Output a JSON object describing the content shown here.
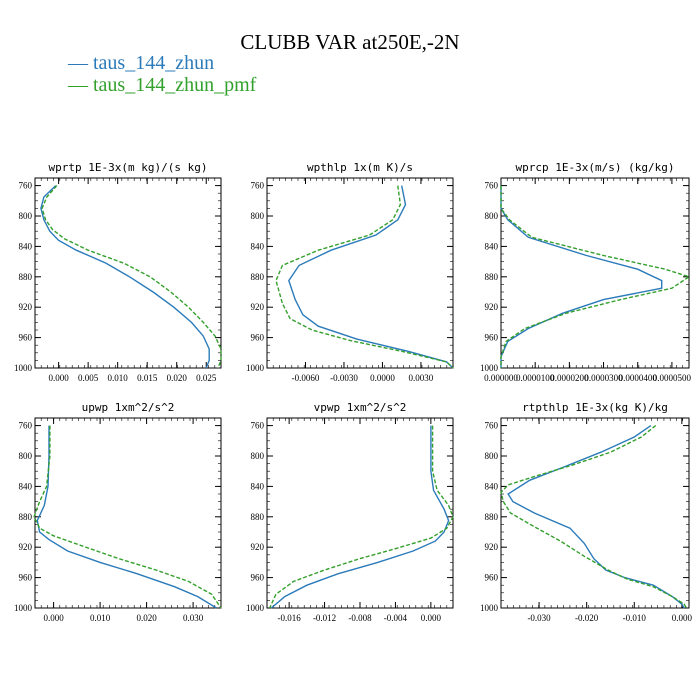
{
  "figure": {
    "title": "CLUBB VAR at250E,-2N",
    "legend": [
      {
        "label": "taus_144_zhun",
        "color": "#2b7bba"
      },
      {
        "label": "taus_144_zhun_pmf",
        "color": "#33a02c"
      }
    ]
  },
  "chart_data": [
    {
      "type": "line",
      "title": "wprtp   1E-3x(m kg)/(s kg)",
      "xlim": [
        -0.004,
        0.0275
      ],
      "ylim": [
        1000,
        750
      ],
      "y_reversed": true,
      "xticks": [
        0.0,
        0.005,
        0.01,
        0.015,
        0.02,
        0.025
      ],
      "xtick_labels": [
        "0.000",
        "0.005",
        "0.010",
        "0.015",
        "0.020",
        "0.025"
      ],
      "yticks": [
        760,
        800,
        840,
        880,
        920,
        960,
        1000
      ],
      "series": [
        {
          "name": "taus_144_zhun",
          "color": "#2b7bba",
          "dashed": false,
          "points": [
            [
              -0.0005,
              760
            ],
            [
              -0.0025,
              775
            ],
            [
              -0.003,
              790
            ],
            [
              -0.0025,
              805
            ],
            [
              -0.0015,
              820
            ],
            [
              0.0,
              832
            ],
            [
              0.003,
              845
            ],
            [
              0.008,
              862
            ],
            [
              0.012,
              880
            ],
            [
              0.016,
              900
            ],
            [
              0.0195,
              920
            ],
            [
              0.0225,
              940
            ],
            [
              0.0245,
              958
            ],
            [
              0.0255,
              975
            ],
            [
              0.0255,
              990
            ],
            [
              0.025,
              1000
            ]
          ]
        },
        {
          "name": "taus_144_zhun_pmf",
          "color": "#33a02c",
          "dashed": true,
          "points": [
            [
              -0.0003,
              760
            ],
            [
              -0.002,
              775
            ],
            [
              -0.0028,
              790
            ],
            [
              -0.0022,
              805
            ],
            [
              -0.001,
              818
            ],
            [
              0.001,
              830
            ],
            [
              0.005,
              845
            ],
            [
              0.011,
              862
            ],
            [
              0.0155,
              880
            ],
            [
              0.019,
              900
            ],
            [
              0.022,
              920
            ],
            [
              0.0245,
              940
            ],
            [
              0.0265,
              958
            ],
            [
              0.0275,
              975
            ],
            [
              0.0275,
              990
            ],
            [
              0.027,
              1000
            ]
          ]
        }
      ]
    },
    {
      "type": "line",
      "title": "wpthlp   1x(m K)/s",
      "xlim": [
        -0.009,
        0.0055
      ],
      "ylim": [
        1000,
        750
      ],
      "y_reversed": true,
      "xticks": [
        -0.006,
        -0.003,
        0.0,
        0.003
      ],
      "xtick_labels": [
        "-0.0060",
        "-0.0030",
        "0.0000",
        "0.0030"
      ],
      "yticks": [
        760,
        800,
        840,
        880,
        920,
        960,
        1000
      ],
      "series": [
        {
          "name": "taus_144_zhun",
          "color": "#2b7bba",
          "dashed": false,
          "points": [
            [
              0.0015,
              760
            ],
            [
              0.0018,
              785
            ],
            [
              0.0012,
              805
            ],
            [
              -0.0005,
              825
            ],
            [
              -0.004,
              845
            ],
            [
              -0.0065,
              865
            ],
            [
              -0.0073,
              885
            ],
            [
              -0.0068,
              910
            ],
            [
              -0.0062,
              930
            ],
            [
              -0.005,
              945
            ],
            [
              -0.002,
              962
            ],
            [
              0.002,
              978
            ],
            [
              0.005,
              992
            ],
            [
              0.0055,
              1000
            ]
          ]
        },
        {
          "name": "taus_144_zhun_pmf",
          "color": "#33a02c",
          "dashed": true,
          "points": [
            [
              0.0012,
              760
            ],
            [
              0.0014,
              785
            ],
            [
              0.0008,
              805
            ],
            [
              -0.001,
              825
            ],
            [
              -0.005,
              845
            ],
            [
              -0.0078,
              865
            ],
            [
              -0.0083,
              885
            ],
            [
              -0.0078,
              915
            ],
            [
              -0.0072,
              935
            ],
            [
              -0.0055,
              950
            ],
            [
              -0.0025,
              964
            ],
            [
              0.0015,
              978
            ],
            [
              0.005,
              992
            ],
            [
              0.0055,
              1000
            ]
          ]
        }
      ]
    },
    {
      "type": "line",
      "title": "wprcp   1E-3x(m/s) (kg/kg)",
      "xlim": [
        0.0,
        5.5e-05
      ],
      "ylim": [
        1000,
        750
      ],
      "y_reversed": true,
      "xticks": [
        0.0,
        1e-05,
        2e-05,
        3e-05,
        4e-05,
        5e-05
      ],
      "xtick_labels": [
        "0.000000",
        "0.0000100",
        "0.0000200",
        "0.0000300",
        "0.0000400",
        "0.0000500"
      ],
      "yticks": [
        760,
        800,
        840,
        880,
        920,
        960,
        1000
      ],
      "series": [
        {
          "name": "taus_144_zhun",
          "color": "#2b7bba",
          "dashed": false,
          "points": [
            [
              0.0,
              760
            ],
            [
              0.0,
              790
            ],
            [
              2e-06,
              805
            ],
            [
              8e-06,
              828
            ],
            [
              2.5e-05,
              852
            ],
            [
              4e-05,
              870
            ],
            [
              4.7e-05,
              885
            ],
            [
              4.7e-05,
              895
            ],
            [
              3e-05,
              910
            ],
            [
              1.8e-05,
              928
            ],
            [
              8e-06,
              948
            ],
            [
              2e-06,
              965
            ],
            [
              0.0,
              985
            ],
            [
              0.0,
              1000
            ]
          ]
        },
        {
          "name": "taus_144_zhun_pmf",
          "color": "#33a02c",
          "dashed": true,
          "points": [
            [
              0.0,
              760
            ],
            [
              0.0,
              790
            ],
            [
              2.5e-06,
              805
            ],
            [
              9e-06,
              828
            ],
            [
              3e-05,
              852
            ],
            [
              4.8e-05,
              870
            ],
            [
              5.5e-05,
              880
            ],
            [
              5e-05,
              895
            ],
            [
              3.5e-05,
              910
            ],
            [
              1.9e-05,
              928
            ],
            [
              7e-06,
              948
            ],
            [
              1.5e-06,
              965
            ],
            [
              0.0,
              985
            ],
            [
              0.0,
              1000
            ]
          ]
        }
      ]
    },
    {
      "type": "line",
      "title": "upwp   1xm^2/s^2",
      "xlim": [
        -0.004,
        0.036
      ],
      "ylim": [
        1000,
        750
      ],
      "y_reversed": true,
      "xticks": [
        0.0,
        0.01,
        0.02,
        0.03
      ],
      "xtick_labels": [
        "0.000",
        "0.010",
        "0.020",
        "0.030"
      ],
      "yticks": [
        760,
        800,
        840,
        880,
        920,
        960,
        1000
      ],
      "series": [
        {
          "name": "taus_144_zhun",
          "color": "#2b7bba",
          "dashed": false,
          "points": [
            [
              -0.001,
              760
            ],
            [
              -0.001,
              800
            ],
            [
              -0.0012,
              840
            ],
            [
              -0.002,
              865
            ],
            [
              -0.0035,
              885
            ],
            [
              -0.003,
              900
            ],
            [
              -0.001,
              910
            ],
            [
              0.003,
              925
            ],
            [
              0.01,
              940
            ],
            [
              0.018,
              955
            ],
            [
              0.026,
              972
            ],
            [
              0.031,
              985
            ],
            [
              0.035,
              1000
            ]
          ]
        },
        {
          "name": "taus_144_zhun_pmf",
          "color": "#33a02c",
          "dashed": true,
          "points": [
            [
              -0.0008,
              760
            ],
            [
              -0.0008,
              800
            ],
            [
              -0.0015,
              840
            ],
            [
              -0.003,
              860
            ],
            [
              -0.0042,
              880
            ],
            [
              -0.003,
              895
            ],
            [
              0.0,
              905
            ],
            [
              0.006,
              918
            ],
            [
              0.014,
              935
            ],
            [
              0.022,
              950
            ],
            [
              0.029,
              965
            ],
            [
              0.034,
              982
            ],
            [
              0.036,
              1000
            ]
          ]
        }
      ]
    },
    {
      "type": "line",
      "title": "vpwp   1xm^2/s^2",
      "xlim": [
        -0.0185,
        0.0025
      ],
      "ylim": [
        1000,
        750
      ],
      "y_reversed": true,
      "xticks": [
        -0.016,
        -0.012,
        -0.008,
        -0.004,
        0.0
      ],
      "xtick_labels": [
        "-0.016",
        "-0.012",
        "-0.008",
        "-0.004",
        "0.000"
      ],
      "yticks": [
        760,
        800,
        840,
        880,
        920,
        960,
        1000
      ],
      "series": [
        {
          "name": "taus_144_zhun",
          "color": "#2b7bba",
          "dashed": false,
          "points": [
            [
              0.0,
              760
            ],
            [
              0.0,
              820
            ],
            [
              0.0003,
              845
            ],
            [
              0.0015,
              870
            ],
            [
              0.002,
              885
            ],
            [
              0.0015,
              900
            ],
            [
              0.0005,
              912
            ],
            [
              -0.002,
              925
            ],
            [
              -0.006,
              940
            ],
            [
              -0.0105,
              955
            ],
            [
              -0.014,
              970
            ],
            [
              -0.0165,
              985
            ],
            [
              -0.018,
              1000
            ]
          ]
        },
        {
          "name": "taus_144_zhun_pmf",
          "color": "#33a02c",
          "dashed": true,
          "points": [
            [
              0.0002,
              760
            ],
            [
              0.0002,
              820
            ],
            [
              0.0007,
              845
            ],
            [
              0.002,
              865
            ],
            [
              0.0025,
              880
            ],
            [
              0.0018,
              895
            ],
            [
              0.0,
              908
            ],
            [
              -0.004,
              922
            ],
            [
              -0.008,
              935
            ],
            [
              -0.012,
              950
            ],
            [
              -0.0155,
              965
            ],
            [
              -0.0175,
              982
            ],
            [
              -0.0182,
              1000
            ]
          ]
        }
      ]
    },
    {
      "type": "line",
      "title": "rtpthlp   1E-3x(kg K)/kg",
      "xlim": [
        -0.038,
        0.0015
      ],
      "ylim": [
        1000,
        750
      ],
      "y_reversed": true,
      "xticks": [
        -0.03,
        -0.02,
        -0.01,
        0.0
      ],
      "xtick_labels": [
        "-0.030",
        "-0.020",
        "-0.010",
        "0.000"
      ],
      "yticks": [
        760,
        800,
        840,
        880,
        920,
        960,
        1000
      ],
      "series": [
        {
          "name": "taus_144_zhun",
          "color": "#2b7bba",
          "dashed": false,
          "points": [
            [
              -0.0065,
              760
            ],
            [
              -0.01,
              775
            ],
            [
              -0.017,
              795
            ],
            [
              -0.025,
              815
            ],
            [
              -0.032,
              832
            ],
            [
              -0.0365,
              850
            ],
            [
              -0.0355,
              860
            ],
            [
              -0.031,
              875
            ],
            [
              -0.0235,
              895
            ],
            [
              -0.0205,
              915
            ],
            [
              -0.0185,
              935
            ],
            [
              -0.016,
              950
            ],
            [
              -0.012,
              960
            ],
            [
              -0.006,
              970
            ],
            [
              -0.002,
              985
            ],
            [
              0.0,
              995
            ],
            [
              0.0005,
              1000
            ]
          ]
        },
        {
          "name": "taus_144_zhun_pmf",
          "color": "#33a02c",
          "dashed": true,
          "points": [
            [
              -0.0055,
              760
            ],
            [
              -0.0085,
              775
            ],
            [
              -0.015,
              795
            ],
            [
              -0.023,
              812
            ],
            [
              -0.0305,
              826
            ],
            [
              -0.0365,
              838
            ],
            [
              -0.038,
              848
            ],
            [
              -0.0375,
              860
            ],
            [
              -0.036,
              875
            ],
            [
              -0.031,
              893
            ],
            [
              -0.0255,
              912
            ],
            [
              -0.0205,
              932
            ],
            [
              -0.0155,
              950
            ],
            [
              -0.0115,
              962
            ],
            [
              -0.006,
              972
            ],
            [
              -0.002,
              985
            ],
            [
              0.0005,
              995
            ],
            [
              0.001,
              1000
            ]
          ]
        }
      ]
    }
  ]
}
